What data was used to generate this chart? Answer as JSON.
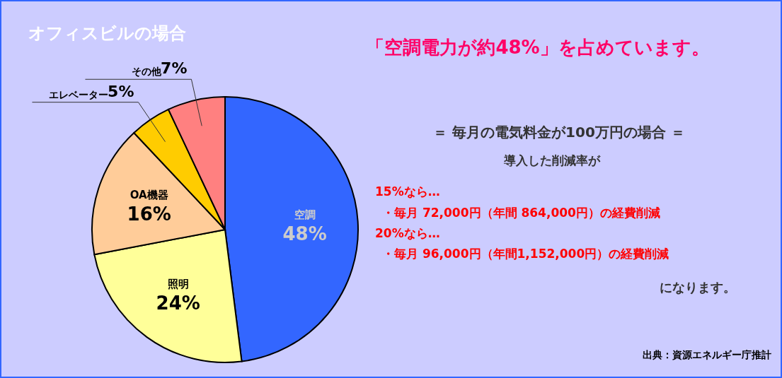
{
  "chart_data": {
    "type": "pie",
    "title": "オフィスビルの場合",
    "subtitle": "「空調電力が約48%」を占めています。",
    "categories": [
      "空調",
      "照明",
      "OA機器",
      "エレベーター",
      "その他"
    ],
    "values": [
      48,
      24,
      16,
      5,
      7
    ],
    "colors": [
      "#3366ff",
      "#ffff99",
      "#ffcc99",
      "#ffcc00",
      "#ff8080"
    ],
    "value_labels": [
      "48%",
      "24%",
      "16%",
      "5%",
      "7%"
    ],
    "annotations": [
      "＝ 毎月の電気料金が100万円の場合 ＝",
      "導入した削減率が",
      "15%なら…",
      "・毎月 72,000円（年間 864,000円）の経費削減",
      "20%なら…",
      "・毎月 96,000円（年間1,152,000円）の経費削減",
      "になります。",
      "出典：資源エネルギー庁推計"
    ]
  }
}
